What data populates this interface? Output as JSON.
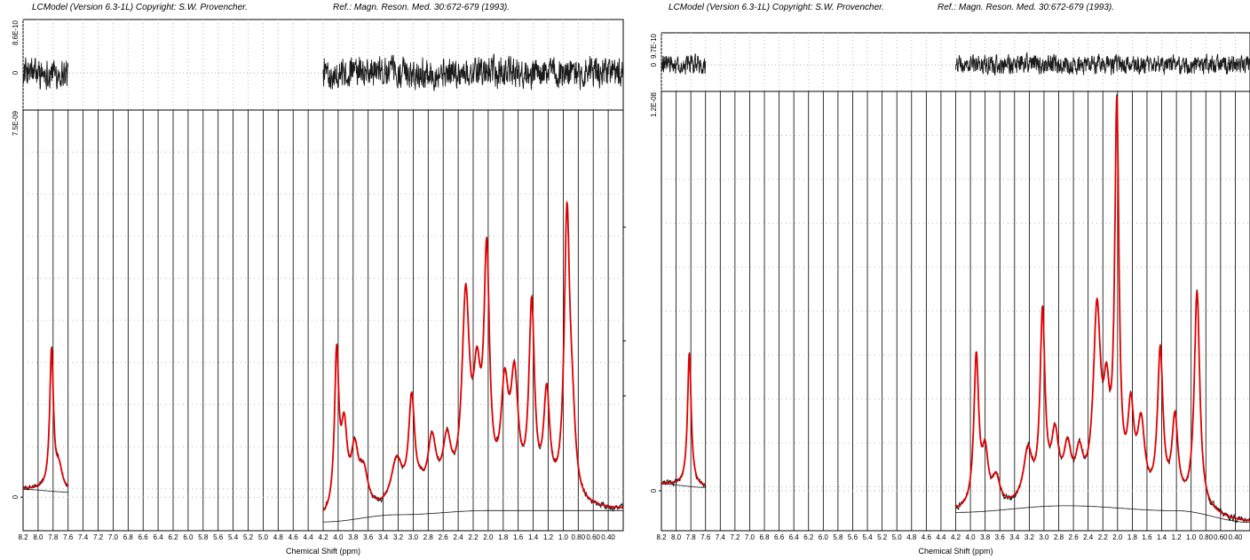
{
  "chart_data": [
    {
      "type": "line",
      "title": "LCModel (Version 6.3-1L) Copyright: S.W. Provencher.",
      "reference": "Ref.: Magn. Reson. Med. 30:672-679 (1993).",
      "xlabel": "Chemical Shift (ppm)",
      "xlim": [
        8.2,
        0.2
      ],
      "x_ticks": [
        "8.2",
        "8.0",
        "7.8",
        "7.6",
        "7.4",
        "7.2",
        "7.0",
        "6.8",
        "6.6",
        "6.4",
        "6.2",
        "6.0",
        "5.8",
        "5.6",
        "5.4",
        "5.2",
        "5.0",
        "4.8",
        "4.6",
        "4.4",
        "4.2",
        "4.0",
        "3.8",
        "3.6",
        "3.4",
        "3.2",
        "3.0",
        "2.8",
        "2.6",
        "2.4",
        "2.2",
        "2.0",
        "1.8",
        "1.6",
        "1.4",
        "1.2",
        "1.0",
        "0.80",
        "0.60",
        "0.40"
      ],
      "residual_ticks": [
        "8.6E-10",
        "0"
      ],
      "main_ticks": [
        "7.5E-09",
        "0"
      ],
      "ylim_main": [
        -6.5e-10,
        7.5e-09
      ],
      "ylim_residual": [
        -6e-10,
        8.6e-10
      ],
      "regions": [
        [
          8.2,
          7.6
        ],
        [
          4.2,
          0.2
        ]
      ],
      "peaks": [
        {
          "ppm": 7.82,
          "amp": 2.7e-09,
          "w": 0.03
        },
        {
          "ppm": 7.72,
          "amp": 4e-10,
          "w": 0.05
        },
        {
          "ppm": 4.02,
          "amp": 3e-09,
          "w": 0.035
        },
        {
          "ppm": 3.92,
          "amp": 1.5e-09,
          "w": 0.05
        },
        {
          "ppm": 3.78,
          "amp": 1.1e-09,
          "w": 0.06
        },
        {
          "ppm": 3.66,
          "amp": 7e-10,
          "w": 0.07
        },
        {
          "ppm": 3.22,
          "amp": 9e-10,
          "w": 0.09
        },
        {
          "ppm": 3.02,
          "amp": 2e-09,
          "w": 0.05
        },
        {
          "ppm": 2.9,
          "amp": 2e-10,
          "w": 0.05
        },
        {
          "ppm": 2.75,
          "amp": 1.2e-09,
          "w": 0.07
        },
        {
          "ppm": 2.55,
          "amp": 1.1e-09,
          "w": 0.07
        },
        {
          "ppm": 2.3,
          "amp": 3.8e-09,
          "w": 0.06
        },
        {
          "ppm": 2.15,
          "amp": 2e-09,
          "w": 0.06
        },
        {
          "ppm": 2.02,
          "amp": 4.5e-09,
          "w": 0.045
        },
        {
          "ppm": 1.78,
          "amp": 2e-09,
          "w": 0.06
        },
        {
          "ppm": 1.65,
          "amp": 2.2e-09,
          "w": 0.06
        },
        {
          "ppm": 1.42,
          "amp": 3.7e-09,
          "w": 0.045
        },
        {
          "ppm": 1.22,
          "amp": 2e-09,
          "w": 0.05
        },
        {
          "ppm": 0.95,
          "amp": 5.4e-09,
          "w": 0.045
        },
        {
          "ppm": 0.88,
          "amp": 1.2e-09,
          "w": 0.05
        }
      ],
      "baseline": [
        {
          "ppm": 8.2,
          "value": 1.5e-10
        },
        {
          "ppm": 7.6,
          "value": 1e-10
        },
        {
          "ppm": 4.2,
          "value": -4.8e-10
        },
        {
          "ppm": 3.2,
          "value": -3.4e-10
        },
        {
          "ppm": 2.0,
          "value": -2.6e-10
        },
        {
          "ppm": 0.2,
          "value": -2.6e-10
        }
      ],
      "colors": {
        "fit": "#e00000",
        "data": "#1a1a1a",
        "baseline": "#1a1a1a",
        "grid": "#000000"
      }
    },
    {
      "type": "line",
      "title": "LCModel (Version 6.3-1L) Copyright: S.W. Provencher.",
      "reference": "Ref.: Magn. Reson. Med. 30:672-679 (1993).",
      "xlabel": "Chemical Shift (ppm)",
      "xlim": [
        8.2,
        0.2
      ],
      "x_ticks": [
        "8.2",
        "8.0",
        "7.8",
        "7.6",
        "7.4",
        "7.2",
        "7.0",
        "6.8",
        "6.6",
        "6.4",
        "6.2",
        "6.0",
        "5.8",
        "5.6",
        "5.4",
        "5.2",
        "5.0",
        "4.8",
        "4.6",
        "4.4",
        "4.2",
        "4.0",
        "3.8",
        "3.6",
        "3.4",
        "3.2",
        "3.0",
        "2.8",
        "2.6",
        "2.4",
        "2.2",
        "2.0",
        "1.8",
        "1.6",
        "1.4",
        "1.2",
        "1.0",
        "0.80",
        "0.60",
        "0.40"
      ],
      "residual_ticks": [
        "9.7E-10",
        "0"
      ],
      "main_ticks": [
        "1.2E-08",
        "0"
      ],
      "ylim_main": [
        -1.2e-09,
        1.2e-08
      ],
      "ylim_residual": [
        -8e-10,
        9.7e-10
      ],
      "regions": [
        [
          8.2,
          7.6
        ],
        [
          4.2,
          0.2
        ]
      ],
      "peaks": [
        {
          "ppm": 7.82,
          "amp": 4e-09,
          "w": 0.03
        },
        {
          "ppm": 3.92,
          "amp": 4.5e-09,
          "w": 0.04
        },
        {
          "ppm": 3.8,
          "amp": 1.5e-09,
          "w": 0.05
        },
        {
          "ppm": 3.65,
          "amp": 8e-10,
          "w": 0.06
        },
        {
          "ppm": 3.22,
          "amp": 1.5e-09,
          "w": 0.07
        },
        {
          "ppm": 3.02,
          "amp": 5.5e-09,
          "w": 0.04
        },
        {
          "ppm": 2.85,
          "amp": 1.8e-09,
          "w": 0.06
        },
        {
          "ppm": 2.68,
          "amp": 1.4e-09,
          "w": 0.06
        },
        {
          "ppm": 2.52,
          "amp": 1.2e-09,
          "w": 0.06
        },
        {
          "ppm": 2.28,
          "amp": 5.5e-09,
          "w": 0.06
        },
        {
          "ppm": 2.15,
          "amp": 2.5e-09,
          "w": 0.05
        },
        {
          "ppm": 2.01,
          "amp": 1.15e-08,
          "w": 0.035
        },
        {
          "ppm": 1.82,
          "amp": 2.5e-09,
          "w": 0.05
        },
        {
          "ppm": 1.68,
          "amp": 2.2e-09,
          "w": 0.06
        },
        {
          "ppm": 1.42,
          "amp": 4.5e-09,
          "w": 0.045
        },
        {
          "ppm": 1.22,
          "amp": 2.5e-09,
          "w": 0.05
        },
        {
          "ppm": 0.92,
          "amp": 6.5e-09,
          "w": 0.045
        }
      ],
      "baseline": [
        {
          "ppm": 8.2,
          "value": 2e-10
        },
        {
          "ppm": 7.6,
          "value": 1e-10
        },
        {
          "ppm": 4.2,
          "value": -6.5e-10
        },
        {
          "ppm": 2.7,
          "value": -4.5e-10
        },
        {
          "ppm": 1.2,
          "value": -6e-10
        },
        {
          "ppm": 0.2,
          "value": -9.5e-10
        }
      ],
      "colors": {
        "fit": "#e00000",
        "data": "#1a1a1a",
        "baseline": "#1a1a1a",
        "grid": "#000000"
      }
    }
  ]
}
